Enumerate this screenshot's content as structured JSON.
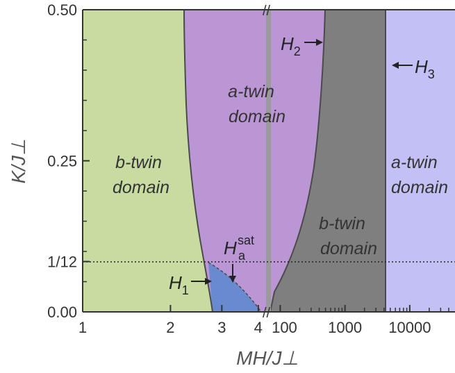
{
  "chart_data": {
    "type": "phase-diagram",
    "xlabel": "MH/J⊥",
    "ylabel": "K/J⊥",
    "x_scale": "broken-log",
    "ylim": [
      0,
      0.5
    ],
    "x_segments": [
      {
        "range": [
          1,
          4.3
        ],
        "ticks": [
          "1",
          "2",
          "3",
          "4"
        ]
      },
      {
        "range": [
          70,
          50000
        ],
        "ticks": [
          "100",
          "1000",
          "10000"
        ]
      }
    ],
    "y_ticks": [
      {
        "value": 0,
        "label": "0.00"
      },
      {
        "value": 0.0833,
        "label": "1/12"
      },
      {
        "value": 0.25,
        "label": "0.25"
      },
      {
        "value": 0.5,
        "label": "0.50"
      }
    ],
    "reference_line": {
      "y": 0.0833,
      "style": "dotted"
    },
    "regions": [
      {
        "label": [
          "b-twin",
          "domain"
        ],
        "color": "#c8dba0"
      },
      {
        "label": [
          "a-twin",
          "domain"
        ],
        "color": "#bb96d4"
      },
      {
        "label": [],
        "color": "#6a8ad0"
      },
      {
        "label": [
          "b-twin",
          "domain"
        ],
        "color": "#7f7f7f"
      },
      {
        "label": [
          "a-twin",
          "domain"
        ],
        "color": "#c3c0f5"
      }
    ],
    "field_labels": [
      {
        "main": "H",
        "sub": "1"
      },
      {
        "main": "H",
        "sub": "2"
      },
      {
        "main": "H",
        "sub": "3"
      },
      {
        "main": "H",
        "sub": "a",
        "sup": "sat"
      }
    ],
    "break_mark": "//",
    "colors": {
      "boundary": "#4a4a4a",
      "break_bar": "#9a9a9a"
    }
  }
}
